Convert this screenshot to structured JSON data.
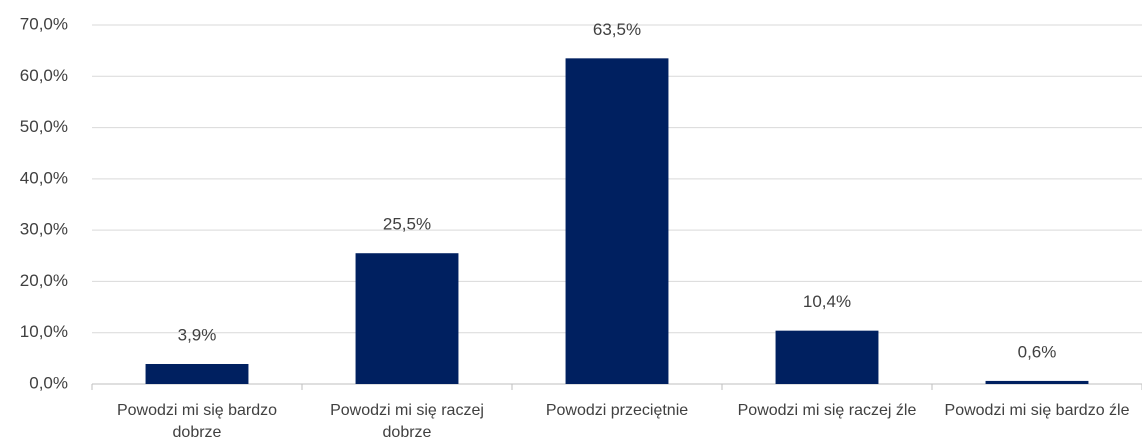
{
  "chart_data": {
    "type": "bar",
    "categories": [
      "Powodzi mi się bardzo dobrze",
      "Powodzi mi się raczej dobrze",
      "Powodzi przeciętnie",
      "Powodzi mi się raczej źle",
      "Powodzi mi się bardzo źle"
    ],
    "values": [
      3.9,
      25.5,
      63.5,
      10.4,
      0.6
    ],
    "value_labels": [
      "3,9%",
      "25,5%",
      "63,5%",
      "10,4%",
      "0,6%"
    ],
    "color": "#002060",
    "ylim": [
      0,
      70
    ],
    "yticks": [
      {
        "value": 0,
        "label": "0,0%"
      },
      {
        "value": 10,
        "label": "10,0%"
      },
      {
        "value": 20,
        "label": "20,0%"
      },
      {
        "value": 30,
        "label": "30,0%"
      },
      {
        "value": 40,
        "label": "40,0%"
      },
      {
        "value": 50,
        "label": "50,0%"
      },
      {
        "value": 60,
        "label": "60,0%"
      },
      {
        "value": 70,
        "label": "70,0%"
      }
    ],
    "grid": true
  }
}
